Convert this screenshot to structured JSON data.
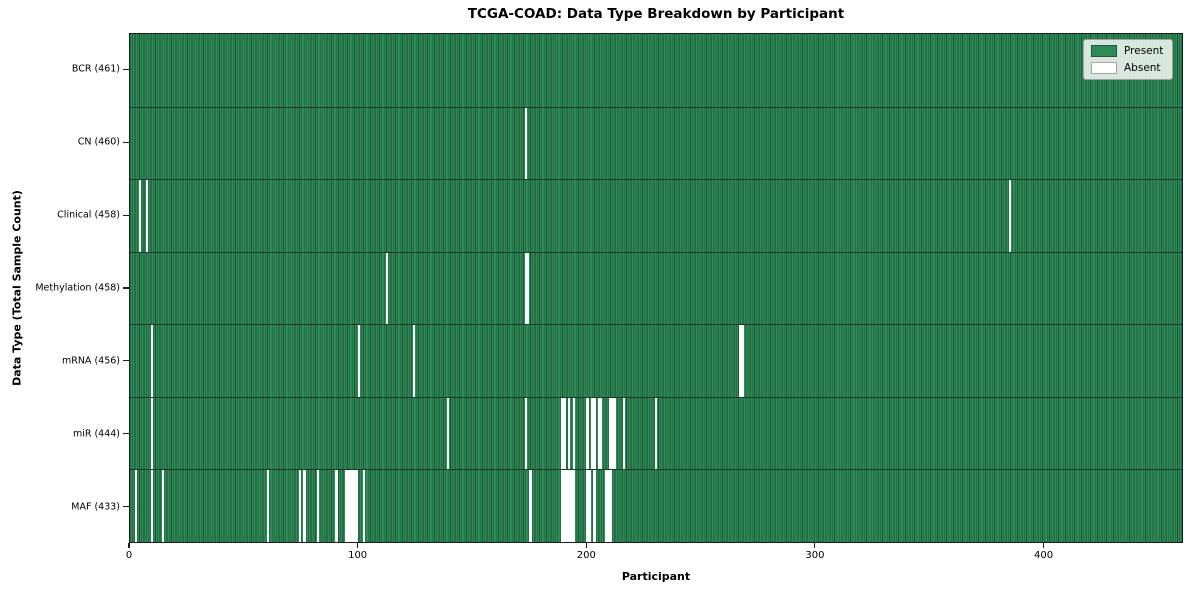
{
  "chart_data": {
    "type": "heatmap",
    "title": "TCGA-COAD: Data Type Breakdown by Participant",
    "xlabel": "Participant",
    "ylabel": "Data Type (Total Sample Count)",
    "n_participants": 461,
    "x_ticks": [
      0,
      100,
      200,
      300,
      400
    ],
    "grid": false,
    "legend_position": "upper right",
    "colors": {
      "present": "#2e8b57",
      "absent": "#ffffff",
      "cell_edge": "#0a2012",
      "axis": "#1c1c1c"
    },
    "legend": [
      {
        "label": "Present",
        "color": "#2e8b57"
      },
      {
        "label": "Absent",
        "color": "#ffffff"
      }
    ],
    "rows": [
      {
        "label": "BCR (461)",
        "data_type": "BCR",
        "present_count": 461,
        "absent_participants": []
      },
      {
        "label": "CN (460)",
        "data_type": "CN",
        "present_count": 460,
        "absent_participants": [
          173
        ]
      },
      {
        "label": "Clinical (458)",
        "data_type": "Clinical",
        "present_count": 458,
        "absent_participants": [
          4,
          7,
          385
        ]
      },
      {
        "label": "Methylation (458)",
        "data_type": "Methylation",
        "present_count": 458,
        "absent_participants": [
          112,
          173,
          174
        ]
      },
      {
        "label": "mRNA (456)",
        "data_type": "mRNA",
        "present_count": 456,
        "absent_participants": [
          9,
          100,
          124,
          267,
          268
        ]
      },
      {
        "label": "miR (444)",
        "data_type": "miR",
        "present_count": 444,
        "absent_participants": [
          9,
          139,
          173,
          189,
          190,
          192,
          194,
          200,
          202,
          203,
          205,
          206,
          210,
          211,
          212,
          216,
          230
        ]
      },
      {
        "label": "MAF (433)",
        "data_type": "MAF",
        "present_count": 433,
        "absent_participants": [
          2,
          9,
          14,
          60,
          74,
          76,
          82,
          90,
          94,
          95,
          96,
          97,
          98,
          99,
          102,
          175,
          189,
          190,
          191,
          192,
          193,
          194,
          200,
          201,
          203,
          208,
          209,
          210
        ]
      }
    ]
  }
}
